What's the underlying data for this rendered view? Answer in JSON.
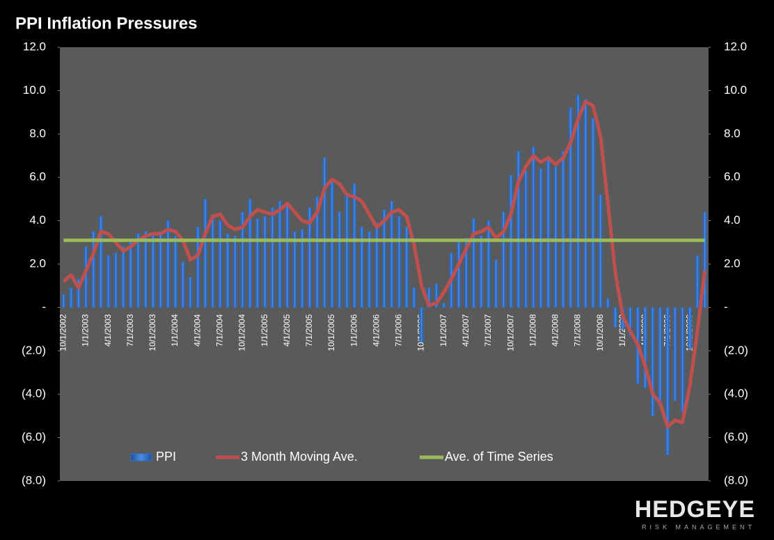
{
  "chart_data": {
    "type": "bar",
    "title": "PPI Inflation Pressures",
    "categories": [
      "10/1/2002",
      null,
      null,
      "1/1/2003",
      null,
      null,
      "4/1/2003",
      null,
      null,
      "7/1/2003",
      null,
      null,
      "10/1/2003",
      null,
      null,
      "1/1/2004",
      null,
      null,
      "4/1/2004",
      null,
      null,
      "7/1/2004",
      null,
      null,
      "10/1/2004",
      null,
      null,
      "1/1/2005",
      null,
      null,
      "4/1/2005",
      null,
      null,
      "7/1/2005",
      null,
      null,
      "10/1/2005",
      null,
      null,
      "1/1/2006",
      null,
      null,
      "4/1/2006",
      null,
      null,
      "7/1/2006",
      null,
      null,
      "10/1/2006",
      null,
      null,
      "1/1/2007",
      null,
      null,
      "4/1/2007",
      null,
      null,
      "7/1/2007",
      null,
      null,
      "10/1/2007",
      null,
      null,
      "1/1/2008",
      null,
      null,
      "4/1/2008",
      null,
      null,
      "7/1/2008",
      null,
      null,
      "10/1/2008",
      null,
      null,
      "1/1/2009",
      null,
      null,
      "4/1/2009",
      null,
      null,
      "7/1/2009",
      null,
      null,
      "10/1/2009",
      null,
      null
    ],
    "series": [
      {
        "name": "PPI",
        "type": "bar",
        "color": "#2f72d0",
        "values": [
          0.6,
          0.9,
          1.3,
          2.8,
          3.5,
          4.2,
          2.4,
          2.5,
          2.8,
          3.0,
          3.4,
          3.5,
          3.3,
          3.5,
          4.0,
          3.3,
          2.1,
          1.4,
          3.7,
          5.0,
          4.2,
          4.0,
          3.4,
          3.3,
          4.4,
          5.0,
          4.1,
          4.2,
          4.6,
          4.9,
          4.8,
          3.5,
          3.6,
          4.6,
          5.1,
          6.9,
          5.9,
          4.4,
          5.3,
          5.7,
          3.7,
          3.5,
          3.9,
          4.5,
          4.9,
          4.2,
          3.7,
          0.9,
          -1.6,
          0.9,
          1.1,
          0.2,
          2.5,
          3.0,
          3.2,
          4.1,
          3.3,
          4.0,
          2.2,
          4.4,
          6.1,
          7.2,
          6.3,
          7.4,
          6.4,
          6.9,
          6.5,
          7.2,
          9.2,
          9.8,
          9.6,
          8.7,
          5.2,
          0.4,
          -0.9,
          -1.0,
          -1.3,
          -3.5,
          -3.7,
          -5.0,
          -4.6,
          -6.8,
          -4.3,
          -4.8,
          -1.9,
          2.4,
          4.4
        ]
      },
      {
        "name": "3 Month Moving Ave.",
        "type": "line",
        "color": "#c0504d",
        "values": [
          1.2,
          1.5,
          0.9,
          1.7,
          2.5,
          3.5,
          3.4,
          3.0,
          2.6,
          2.8,
          3.1,
          3.3,
          3.4,
          3.4,
          3.6,
          3.5,
          3.1,
          2.2,
          2.4,
          3.4,
          4.2,
          4.3,
          3.8,
          3.6,
          3.7,
          4.2,
          4.5,
          4.4,
          4.3,
          4.5,
          4.8,
          4.4,
          4.0,
          3.9,
          4.4,
          5.5,
          5.9,
          5.7,
          5.2,
          5.1,
          4.9,
          4.3,
          3.7,
          4.0,
          4.4,
          4.5,
          4.2,
          2.9,
          1.0,
          0.1,
          0.2,
          0.7,
          1.3,
          2.0,
          2.7,
          3.4,
          3.5,
          3.7,
          3.2,
          3.5,
          4.3,
          5.8,
          6.5,
          7.0,
          6.7,
          6.9,
          6.6,
          6.9,
          7.6,
          8.7,
          9.5,
          9.3,
          7.9,
          4.8,
          1.6,
          -0.4,
          -1.1,
          -1.7,
          -2.7,
          -4.0,
          -4.4,
          -5.5,
          -5.2,
          -5.3,
          -3.6,
          -1.1,
          1.7
        ]
      },
      {
        "name": "Ave. of Time Series",
        "type": "line",
        "color": "#9bbb59",
        "values": [
          3.1,
          3.1,
          3.1,
          3.1,
          3.1,
          3.1,
          3.1,
          3.1,
          3.1,
          3.1,
          3.1,
          3.1,
          3.1,
          3.1,
          3.1,
          3.1,
          3.1,
          3.1,
          3.1,
          3.1,
          3.1,
          3.1,
          3.1,
          3.1,
          3.1,
          3.1,
          3.1,
          3.1,
          3.1,
          3.1,
          3.1,
          3.1,
          3.1,
          3.1,
          3.1,
          3.1,
          3.1,
          3.1,
          3.1,
          3.1,
          3.1,
          3.1,
          3.1,
          3.1,
          3.1,
          3.1,
          3.1,
          3.1,
          3.1,
          3.1,
          3.1,
          3.1,
          3.1,
          3.1,
          3.1,
          3.1,
          3.1,
          3.1,
          3.1,
          3.1,
          3.1,
          3.1,
          3.1,
          3.1,
          3.1,
          3.1,
          3.1,
          3.1,
          3.1,
          3.1,
          3.1,
          3.1,
          3.1,
          3.1,
          3.1,
          3.1,
          3.1,
          3.1,
          3.1,
          3.1,
          3.1,
          3.1,
          3.1,
          3.1,
          3.1,
          3.1,
          3.1
        ]
      }
    ],
    "ylim": [
      -8,
      12
    ],
    "yticks": [
      {
        "value": 12,
        "label": "12.0"
      },
      {
        "value": 10,
        "label": "10.0"
      },
      {
        "value": 8,
        "label": "8.0"
      },
      {
        "value": 6,
        "label": "6.0"
      },
      {
        "value": 4,
        "label": "4.0"
      },
      {
        "value": 2,
        "label": "2.0"
      },
      {
        "value": 0,
        "label": "-"
      },
      {
        "value": -2,
        "label": "(2.0)"
      },
      {
        "value": -4,
        "label": "(4.0)"
      },
      {
        "value": -6,
        "label": "(6.0)"
      },
      {
        "value": -8,
        "label": "(8.0)"
      }
    ],
    "y2lim": [
      -8,
      12
    ],
    "y2ticks": [
      {
        "value": 12,
        "label": "12.0"
      },
      {
        "value": 10,
        "label": "10.0"
      },
      {
        "value": 8,
        "label": "8.0"
      },
      {
        "value": 6,
        "label": "6.0"
      },
      {
        "value": 4,
        "label": "4.0"
      },
      {
        "value": 2,
        "label": "2.0"
      },
      {
        "value": 0,
        "label": "-"
      },
      {
        "value": -2,
        "label": "(2.0)"
      },
      {
        "value": -4,
        "label": "(4.0)"
      },
      {
        "value": -6,
        "label": "(6.0)"
      },
      {
        "value": -8,
        "label": "(8.0)"
      }
    ],
    "legend": "bottom",
    "grid": false
  },
  "logo": {
    "name": "HEDGEYE",
    "tagline": "RISK MANAGEMENT"
  }
}
